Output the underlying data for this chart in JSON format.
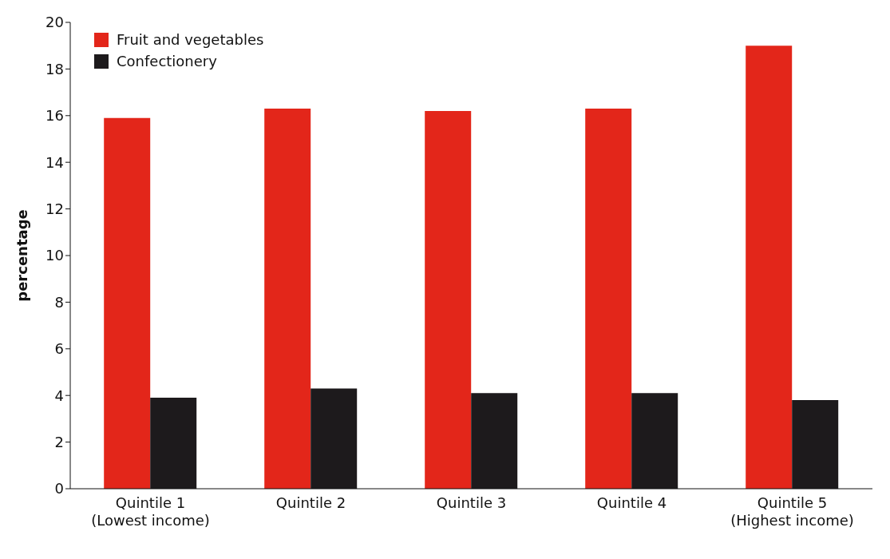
{
  "chart_data": {
    "type": "bar",
    "ylabel": "percentage",
    "categories": [
      "Quintile 1\n(Lowest income)",
      "Quintile 2",
      "Quintile 3",
      "Quintile 4",
      "Quintile 5\n(Highest income)"
    ],
    "series": [
      {
        "name": "Fruit and vegetables",
        "color": "#e3261a",
        "values": [
          15.9,
          16.3,
          16.2,
          16.3,
          19.0
        ]
      },
      {
        "name": "Confectionery",
        "color": "#1d1a1c",
        "values": [
          3.9,
          4.3,
          4.1,
          4.1,
          3.8
        ]
      }
    ],
    "ylim": [
      0,
      20
    ],
    "yticks": [
      0,
      2,
      4,
      6,
      8,
      10,
      12,
      14,
      16,
      18,
      20
    ],
    "grid": false,
    "legend": "top left"
  }
}
